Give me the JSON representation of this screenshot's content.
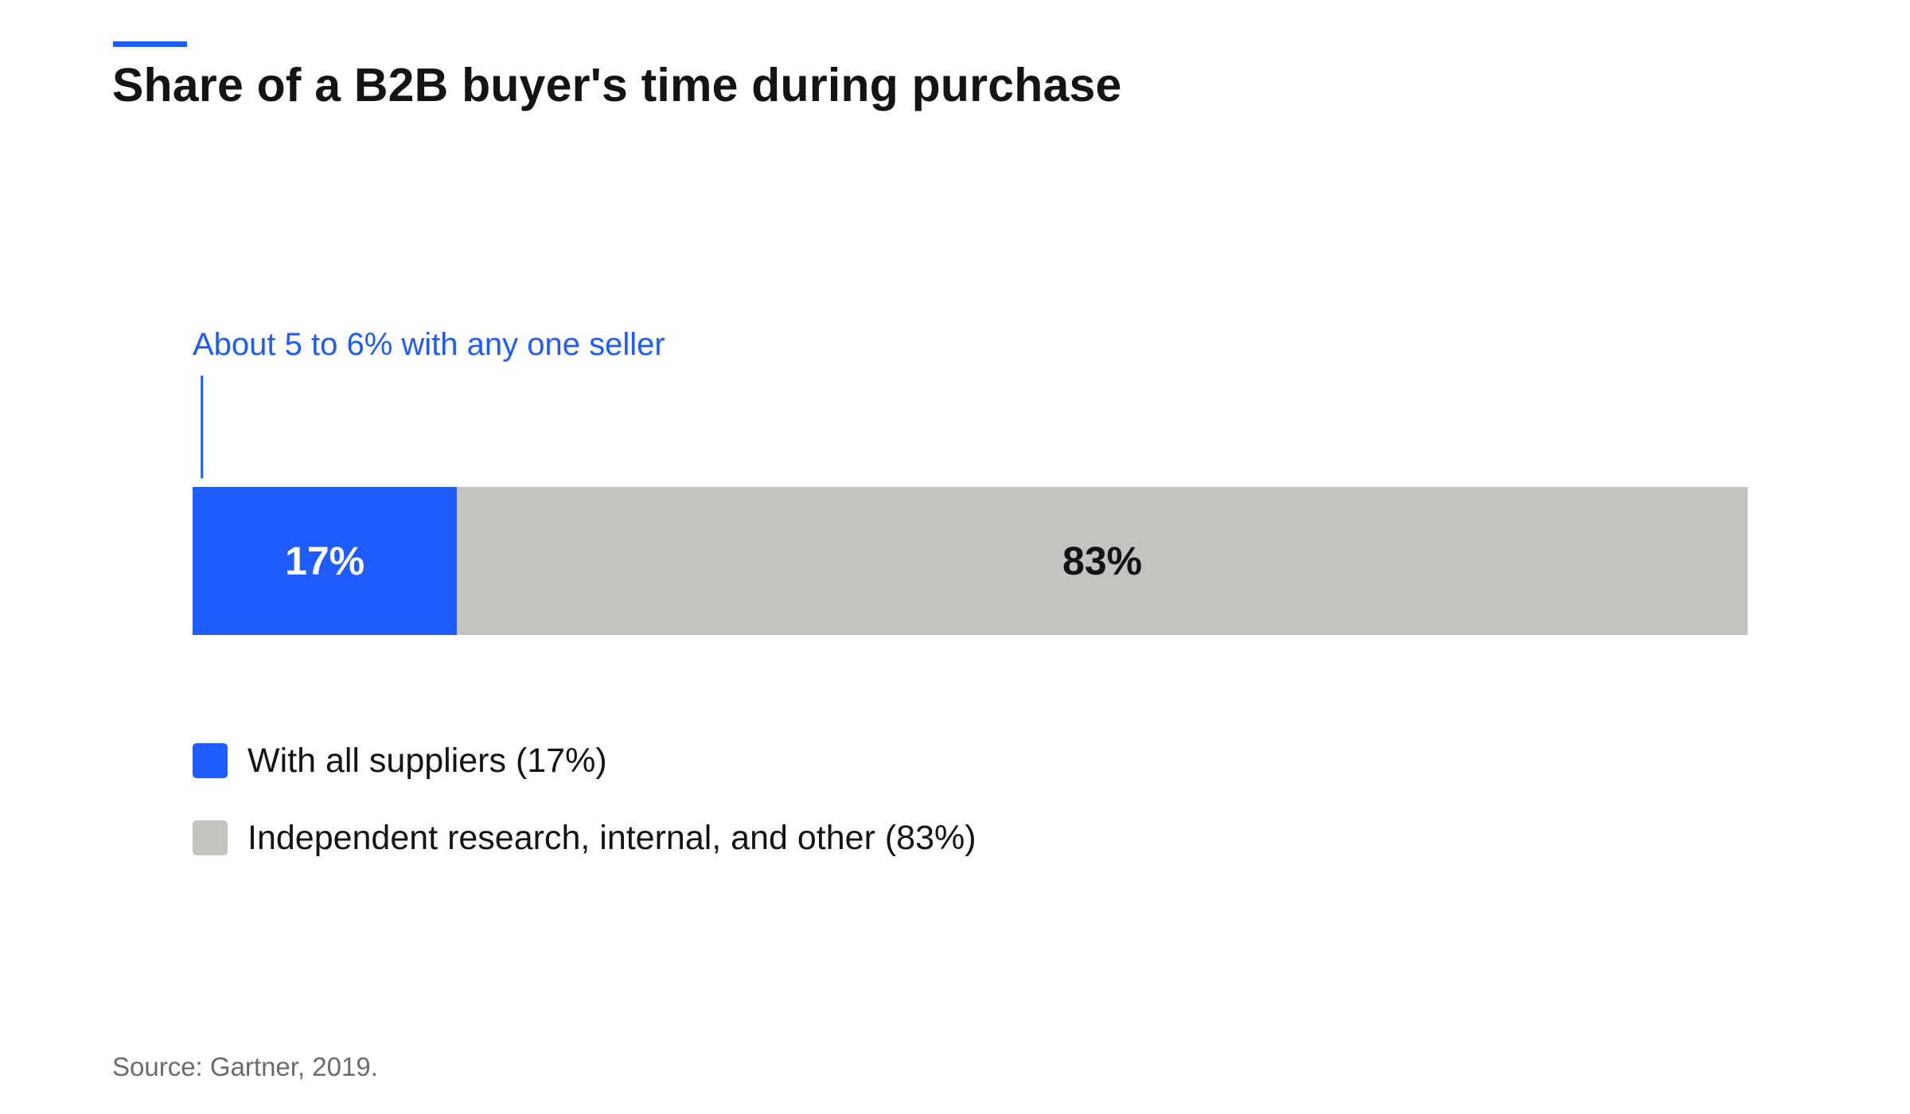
{
  "chart_data": {
    "type": "bar",
    "orientation": "horizontal-stacked",
    "title": "Share of a B2B buyer's time during purchase",
    "categories": [
      ""
    ],
    "series": [
      {
        "name": "With all suppliers (17%)",
        "values": [
          17
        ],
        "label": "17%",
        "color": "#1f5cff",
        "label_color": "#ffffff"
      },
      {
        "name": "Independent research, internal, and other (83%)",
        "values": [
          83
        ],
        "label": "83%",
        "color": "#c3c3bf",
        "label_color": "#141414"
      }
    ],
    "xlim": [
      0,
      100
    ],
    "annotation": {
      "text": "About 5 to 6% with any one seller",
      "value": 0.6,
      "color": "#1f5cff"
    },
    "grid": false,
    "legend_position": "bottom-left",
    "source": "Source: Gartner, 2019."
  },
  "colors": {
    "accent": "#1f5cff",
    "neutral": "#c3c3bf",
    "text": "#141414",
    "muted": "#6b6b6b"
  }
}
